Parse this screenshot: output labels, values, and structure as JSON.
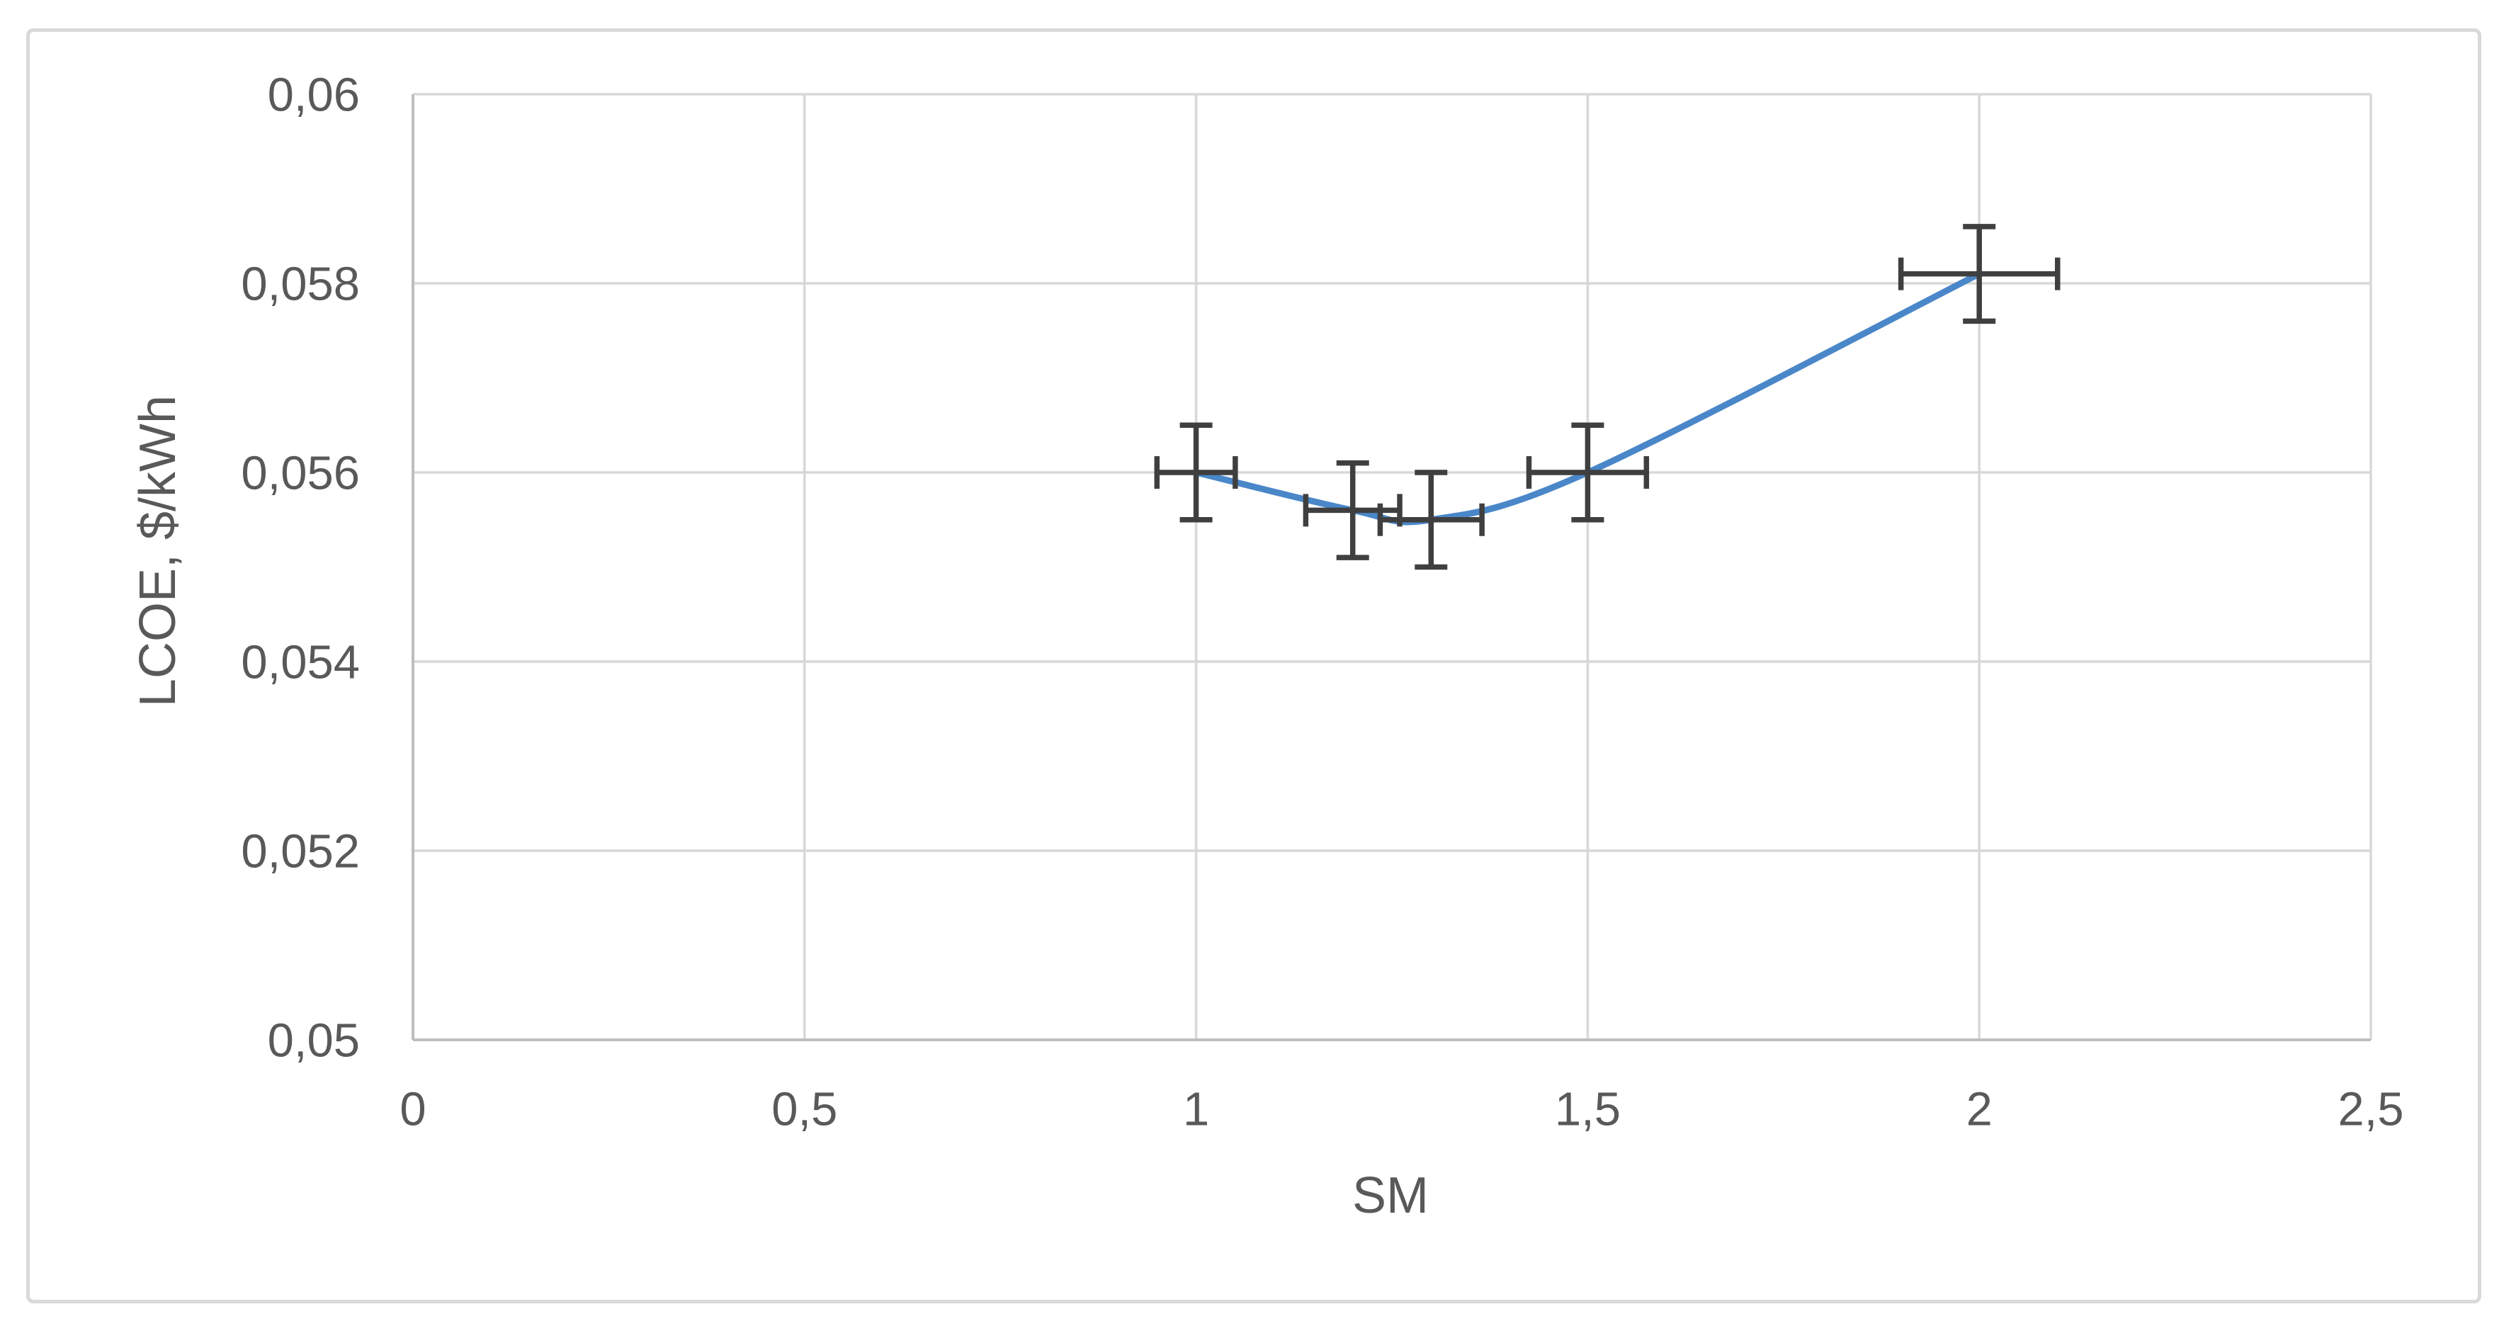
{
  "chart_data": {
    "type": "line",
    "subtype": "scatter-with-smooth-line-and-error-bars",
    "title": "",
    "xlabel": "SM",
    "ylabel": "LCOE, $/kWh",
    "x": [
      1.0,
      1.2,
      1.3,
      1.5,
      2.0
    ],
    "y": [
      0.056,
      0.0556,
      0.0555,
      0.056,
      0.0581
    ],
    "x_error": [
      0.05,
      0.06,
      0.065,
      0.075,
      0.1
    ],
    "y_error": [
      0.0005,
      0.0005,
      0.0005,
      0.0005,
      0.0005
    ],
    "xlim": [
      0,
      2.5
    ],
    "ylim": [
      0.05,
      0.06
    ],
    "x_tick_values": [
      0,
      0.5,
      1,
      1.5,
      2,
      2.5
    ],
    "x_tick_labels": [
      "0",
      "0,5",
      "1",
      "1,5",
      "2",
      "2,5"
    ],
    "y_tick_values": [
      0.05,
      0.052,
      0.054,
      0.056,
      0.058,
      0.06
    ],
    "y_tick_labels": [
      "0,05",
      "0,052",
      "0,054",
      "0,056",
      "0,058",
      "0,06"
    ],
    "grid": true,
    "legend_position": "none",
    "marker": "none",
    "line_smoothing": true,
    "decimal_separator": ",",
    "colors": {
      "series_line": "#4A87C9",
      "error_bar": "#3F3F3F",
      "gridline": "#D8D8D8",
      "axis_line": "#BEBEBE",
      "tick_text": "#595959",
      "chart_border": "#D9D9D9",
      "background": "#FFFFFF"
    }
  }
}
